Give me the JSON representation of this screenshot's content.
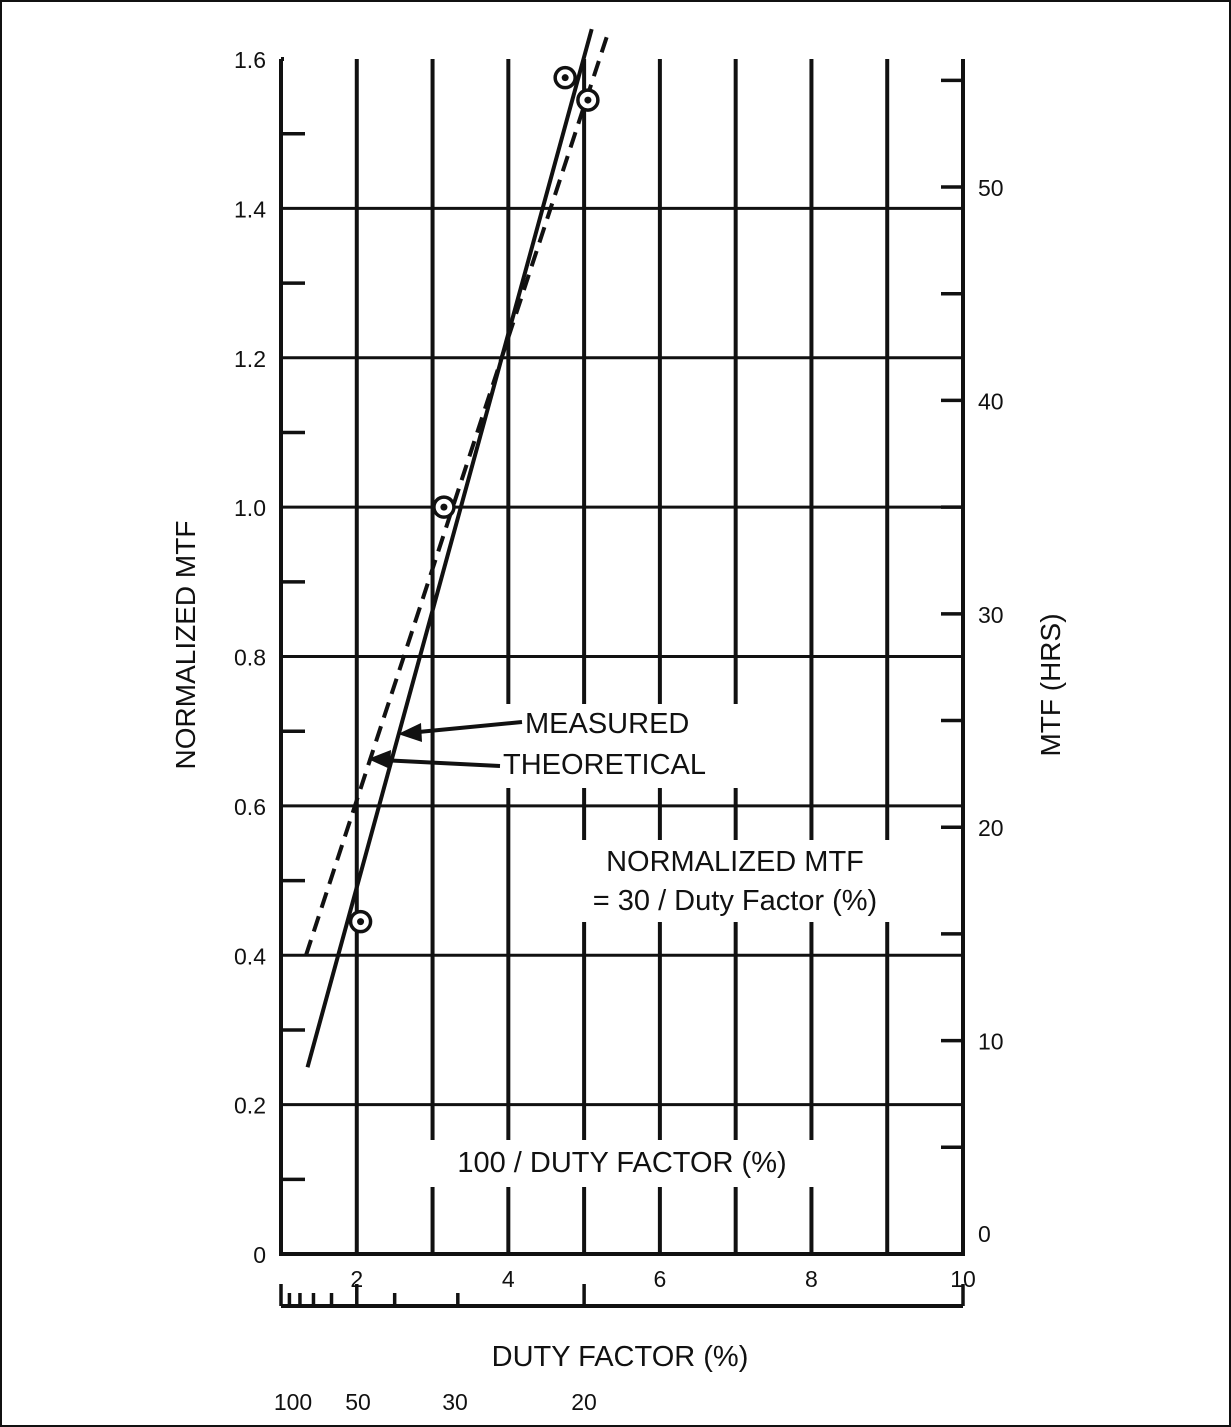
{
  "chart_data": {
    "type": "line",
    "x": {
      "label": "100 / DUTY FACTOR (%)",
      "range": [
        1,
        10
      ],
      "ticks": [
        2,
        4,
        6,
        8,
        10
      ],
      "tick_labels": [
        "2",
        "4",
        "6",
        "8",
        "10"
      ]
    },
    "y_left": {
      "label": "NORMALIZED MTF",
      "range": [
        0,
        1.6
      ],
      "ticks": [
        0,
        0.2,
        0.4,
        0.6,
        0.8,
        1.0,
        1.2,
        1.4,
        1.6
      ],
      "tick_labels": [
        "0",
        "0.2",
        "0.4",
        "0.6",
        "0.8",
        "1.0",
        "1.2",
        "1.4",
        "1.6"
      ]
    },
    "y_right": {
      "label": "MTF (HRS)",
      "range": [
        0,
        56
      ],
      "ticks": [
        0,
        10,
        20,
        30,
        40,
        50
      ],
      "tick_labels": [
        "0",
        "10",
        "20",
        "30",
        "40",
        "50"
      ]
    },
    "secondary_x": {
      "label": "DUTY FACTOR (%)",
      "ticks": [
        100,
        50,
        30,
        20
      ],
      "tick_labels": [
        "100",
        "50",
        "30",
        "20"
      ]
    },
    "grid": true,
    "series": [
      {
        "name": "MEASURED",
        "style": "solid",
        "x": [
          1.35,
          5.1
        ],
        "y": [
          0.25,
          1.64
        ]
      },
      {
        "name": "THEORETICAL",
        "style": "dashed",
        "x": [
          1.33,
          5.3
        ],
        "y": [
          0.4,
          1.63
        ]
      }
    ],
    "points": {
      "x": [
        2.05,
        3.15,
        4.75,
        5.05
      ],
      "y": [
        0.445,
        1.0,
        1.575,
        1.545
      ]
    },
    "annotation": {
      "line1": "NORMALIZED MTF",
      "line2": "= 30 / Duty Factor (%)"
    }
  }
}
